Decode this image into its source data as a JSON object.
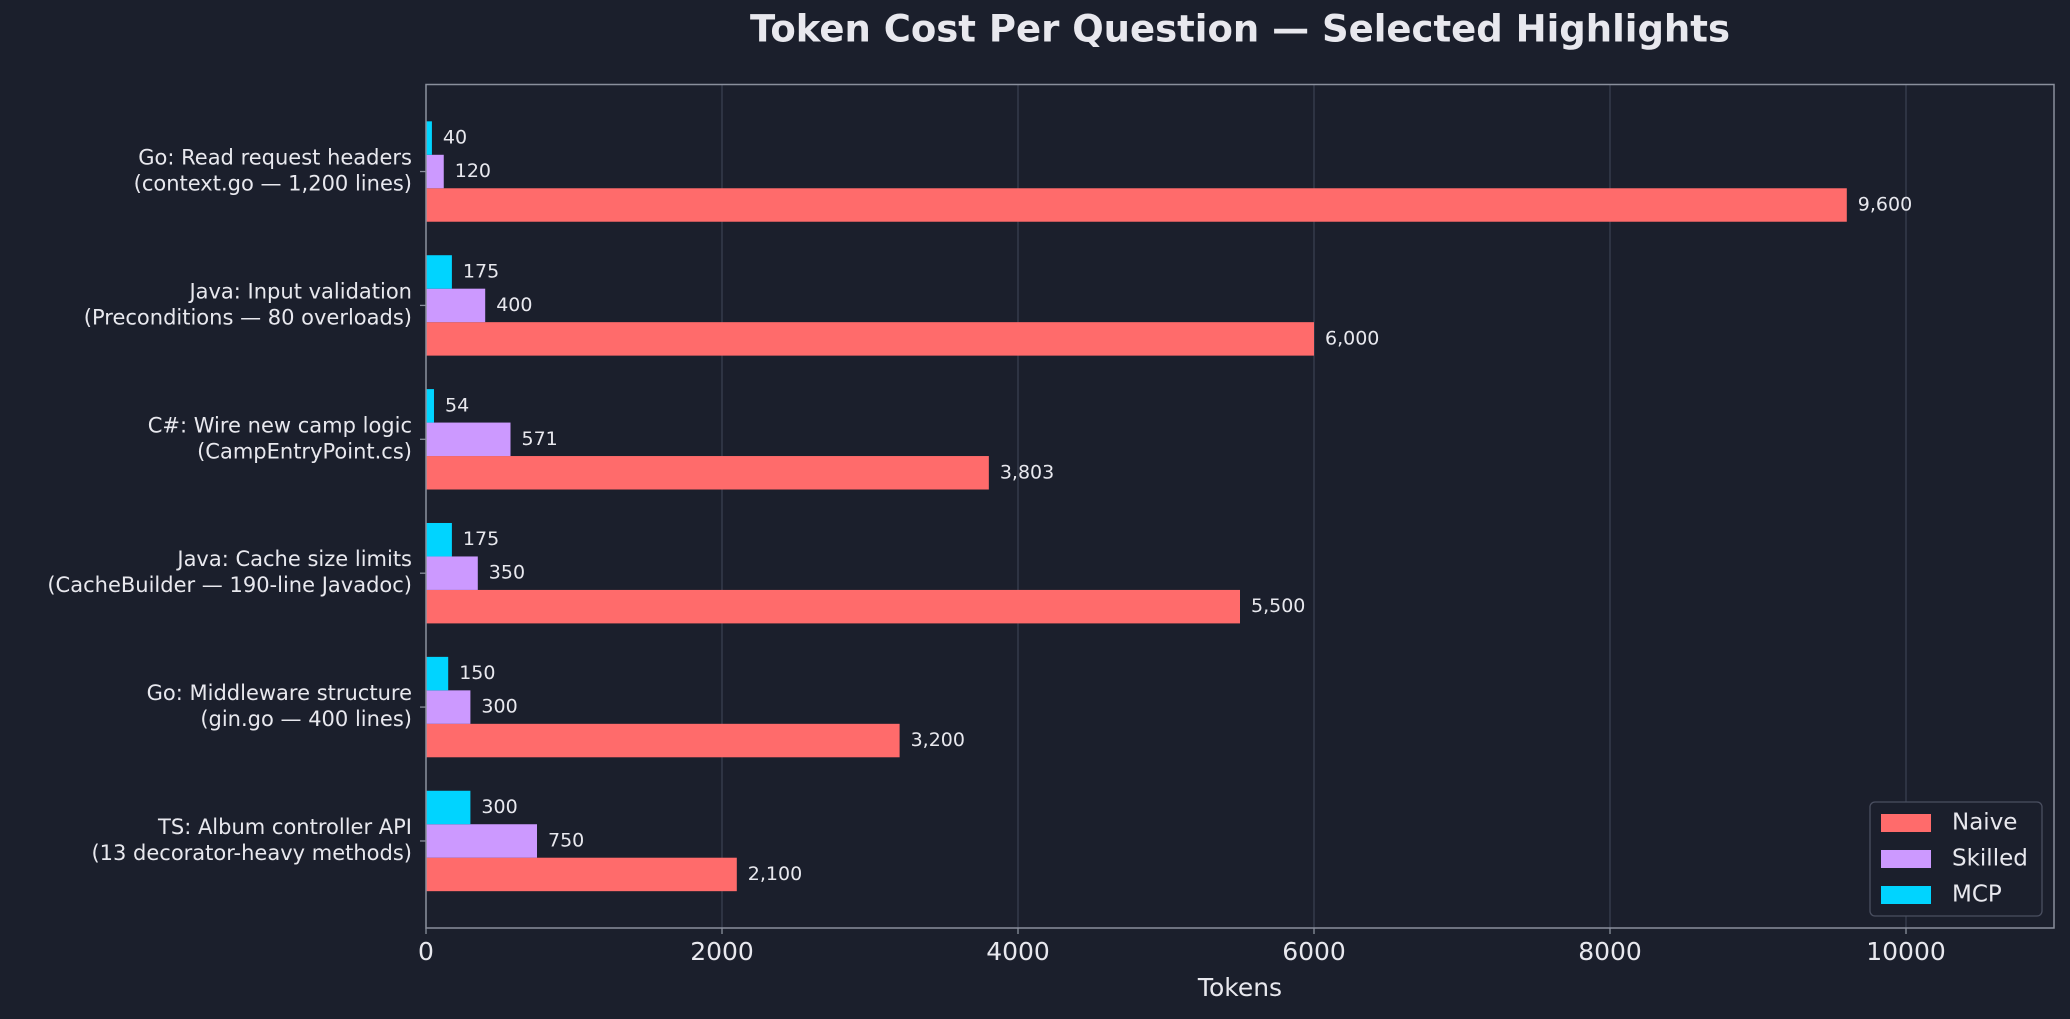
{
  "chart_data": {
    "type": "barh",
    "title": "Token Cost Per Question — Selected Highlights",
    "xlabel": "Tokens",
    "categories": [
      "Go: Read request headers\n(context.go — 1,200 lines)",
      "Java: Input validation\n(Preconditions — 80 overloads)",
      "C#: Wire new camp logic\n(CampEntryPoint.cs)",
      "Java: Cache size limits\n(CacheBuilder — 190-line Javadoc)",
      "Go: Middleware structure\n(gin.go — 400 lines)",
      "TS: Album controller API\n(13 decorator-heavy methods)"
    ],
    "series": [
      {
        "name": "Naive",
        "color": "#ff6b6b",
        "values": [
          9600,
          6000,
          3803,
          5500,
          3200,
          2100
        ],
        "value_labels": [
          "9,600",
          "6,000",
          "3,803",
          "5,500",
          "3,200",
          "2,100"
        ]
      },
      {
        "name": "Skilled",
        "color": "#cc99ff",
        "values": [
          120,
          400,
          571,
          350,
          300,
          750
        ],
        "value_labels": [
          "120",
          "400",
          "571",
          "350",
          "300",
          "750"
        ]
      },
      {
        "name": "MCP",
        "color": "#00d4ff",
        "values": [
          40,
          175,
          54,
          175,
          150,
          300
        ],
        "value_labels": [
          "40",
          "175",
          "54",
          "175",
          "150",
          "300"
        ]
      }
    ],
    "xlim": [
      0,
      11000
    ],
    "xticks": [
      0,
      2000,
      4000,
      6000,
      8000,
      10000
    ],
    "grid": true,
    "legend": "lower right"
  }
}
